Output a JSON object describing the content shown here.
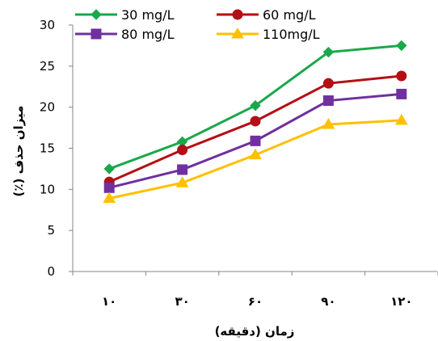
{
  "chart_data": {
    "type": "line",
    "title": "",
    "xlabel": "زمان (دقیقه)",
    "ylabel": "میزان حذف (٪)",
    "categories": [
      "۱۰",
      "۳۰",
      "۶۰",
      "۹۰",
      "۱۲۰"
    ],
    "ylim": [
      0,
      30
    ],
    "yticks": [
      "0",
      "5",
      "10",
      "15",
      "20",
      "25",
      "30"
    ],
    "grid": false,
    "legend_position": "top",
    "series": [
      {
        "name": "30 mg/L",
        "color": "#1aa84b",
        "marker": "diamond",
        "values": [
          12.5,
          15.8,
          20.2,
          26.7,
          27.5
        ]
      },
      {
        "name": "60 mg/L",
        "color": "#b40f14",
        "marker": "circle",
        "values": [
          10.9,
          14.8,
          18.3,
          22.9,
          23.8
        ]
      },
      {
        "name": "80 mg/L",
        "color": "#7030a0",
        "marker": "square",
        "values": [
          10.2,
          12.4,
          15.9,
          20.8,
          21.6
        ]
      },
      {
        "name": "110mg/L",
        "color": "#ffc000",
        "marker": "triangle",
        "values": [
          8.9,
          10.8,
          14.2,
          17.9,
          18.4
        ]
      }
    ]
  }
}
